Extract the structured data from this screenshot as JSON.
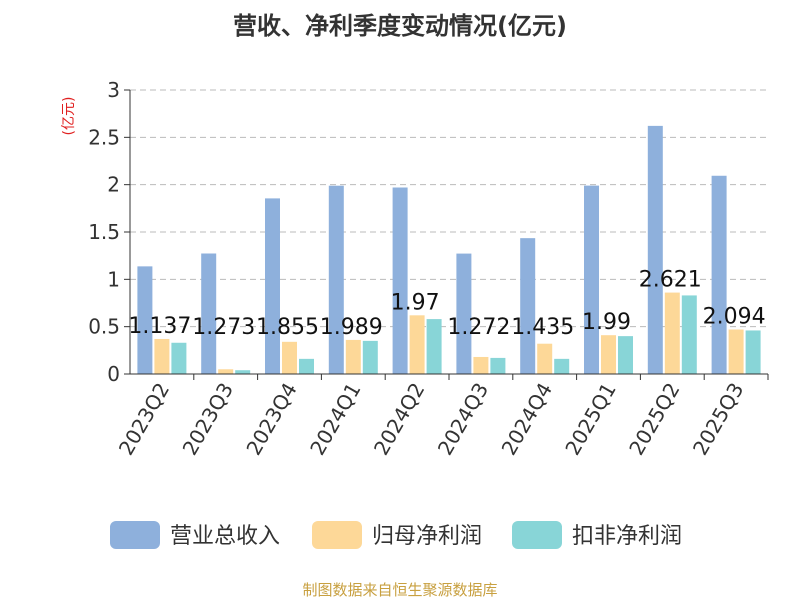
{
  "chart_data": {
    "type": "bar",
    "title": "营收、净利季度变动情况(亿元)",
    "ylabel": "(亿元)",
    "ylim": [
      0,
      3
    ],
    "yticks": [
      0,
      0.5,
      1,
      1.5,
      2,
      2.5,
      3
    ],
    "ytick_labels": [
      "0",
      "0.5",
      "1",
      "1.5",
      "2",
      "2.5",
      "3"
    ],
    "grid": true,
    "legend_position": "bottom",
    "categories": [
      "2023Q2",
      "2023Q3",
      "2023Q4",
      "2024Q1",
      "2024Q2",
      "2024Q3",
      "2024Q4",
      "2025Q1",
      "2025Q2",
      "2025Q3"
    ],
    "series": [
      {
        "name": "营业总收入",
        "color": "#8eb0dc",
        "values": [
          1.137,
          1.273,
          1.855,
          1.989,
          1.97,
          1.272,
          1.435,
          1.99,
          2.621,
          2.094
        ]
      },
      {
        "name": "归母净利润",
        "color": "#fdd898",
        "values": [
          0.37,
          0.05,
          0.34,
          0.36,
          0.62,
          0.18,
          0.32,
          0.41,
          0.86,
          0.47
        ]
      },
      {
        "name": "扣非净利润",
        "color": "#88d5d7",
        "values": [
          0.33,
          0.04,
          0.16,
          0.35,
          0.58,
          0.17,
          0.16,
          0.4,
          0.83,
          0.46
        ]
      }
    ],
    "data_labels": [
      "1.137",
      "1.273",
      "1.855",
      "1.989",
      "1.97",
      "1.272",
      "1.435",
      "1.99",
      "2.621",
      "2.094"
    ]
  },
  "source_text": "制图数据来自恒生聚源数据库",
  "colors": {
    "unit_label": "#e02020",
    "source_text": "#c8a040",
    "axis": "#333333",
    "grid": "#bbbbbb"
  }
}
